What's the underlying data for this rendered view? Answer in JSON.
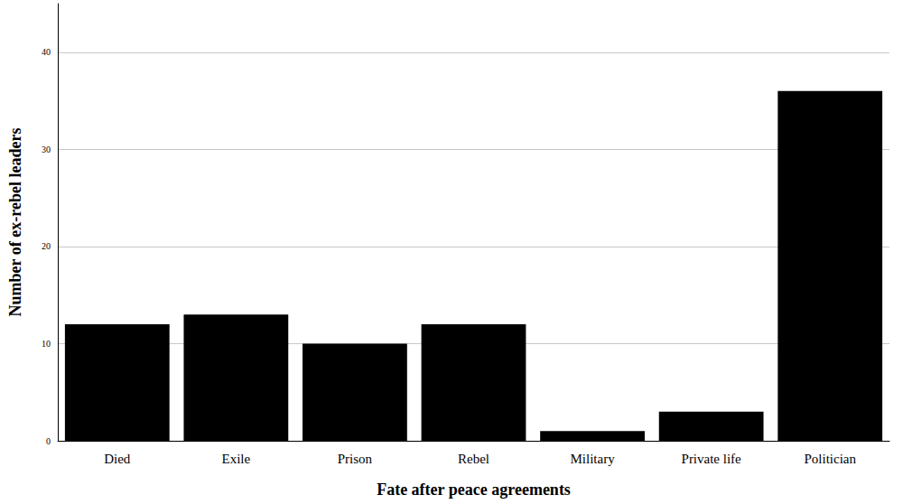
{
  "chart_data": {
    "type": "bar",
    "x_label": "Fate after peace agreements",
    "y_label": "Number of ex-rebel leaders",
    "categories": [
      "Died",
      "Exile",
      "Prison",
      "Rebel",
      "Military",
      "Private life",
      "Politician"
    ],
    "values": [
      12,
      13,
      10,
      12,
      1,
      3,
      36
    ],
    "color": "#000000",
    "ylim": [
      0,
      45
    ],
    "yticks": [
      0,
      10,
      20,
      30,
      40
    ],
    "grid": true
  }
}
